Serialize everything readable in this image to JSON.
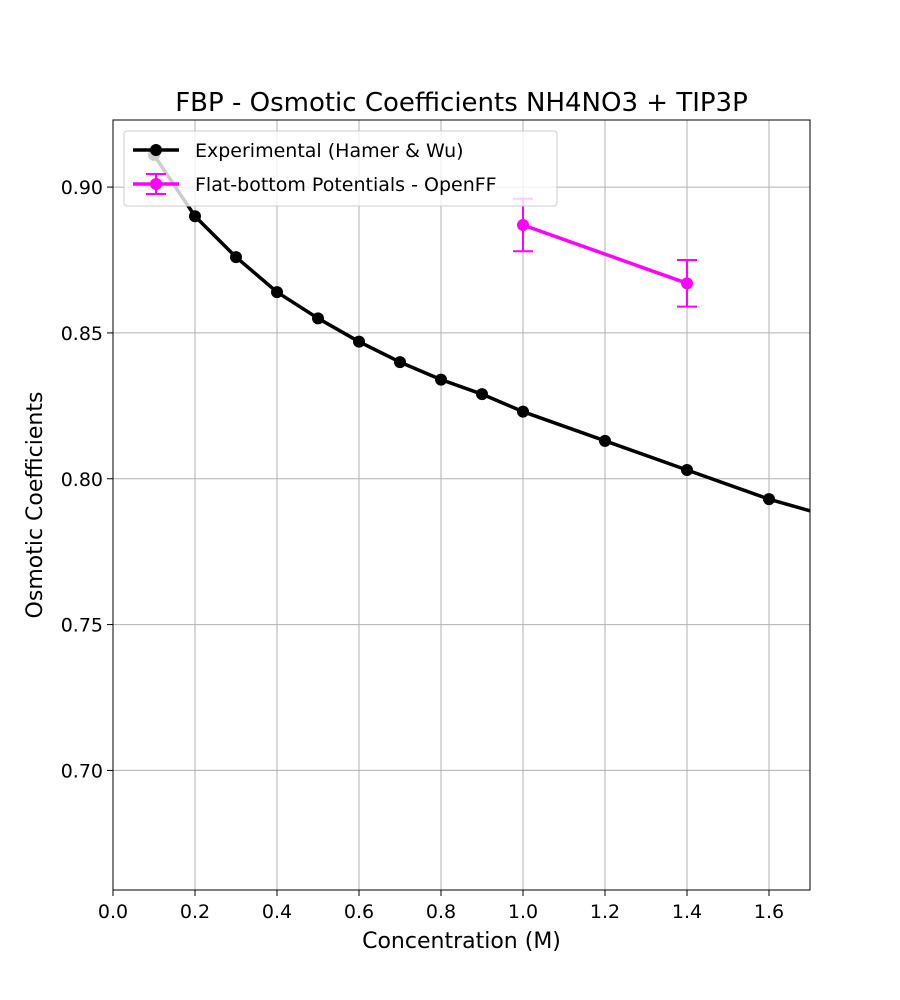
{
  "chart_data": {
    "type": "line",
    "title": "FBP - Osmotic Coefficients NH4NO3 + TIP3P",
    "xlabel": "Concentration (M)",
    "ylabel": "Osmotic Coefficients",
    "xlim": [
      0.0,
      1.7
    ],
    "ylim": [
      0.659,
      0.923
    ],
    "grid": true,
    "legend_position": "top-left",
    "xticks": [
      "0.0",
      "0.2",
      "0.4",
      "0.6",
      "0.8",
      "1.0",
      "1.2",
      "1.4",
      "1.6"
    ],
    "xtick_values": [
      0.0,
      0.2,
      0.4,
      0.6,
      0.8,
      1.0,
      1.2,
      1.4,
      1.6
    ],
    "yticks": [
      "0.70",
      "0.75",
      "0.80",
      "0.85",
      "0.90"
    ],
    "ytick_values": [
      0.7,
      0.75,
      0.8,
      0.85,
      0.9
    ],
    "series": [
      {
        "name": "Experimental (Hamer & Wu)",
        "color": "#000000",
        "x": [
          0.1,
          0.2,
          0.3,
          0.4,
          0.5,
          0.6,
          0.7,
          0.8,
          0.9,
          1.0,
          1.2,
          1.4,
          1.6,
          1.8
        ],
        "y": [
          0.911,
          0.89,
          0.876,
          0.864,
          0.855,
          0.847,
          0.84,
          0.834,
          0.829,
          0.823,
          0.813,
          0.803,
          0.793,
          0.785
        ]
      },
      {
        "name": "Flat-bottom Potentials - OpenFF",
        "color": "#ff00ff",
        "x": [
          1.0,
          1.4
        ],
        "y": [
          0.887,
          0.867
        ],
        "yerr": [
          0.009,
          0.008
        ]
      }
    ]
  }
}
